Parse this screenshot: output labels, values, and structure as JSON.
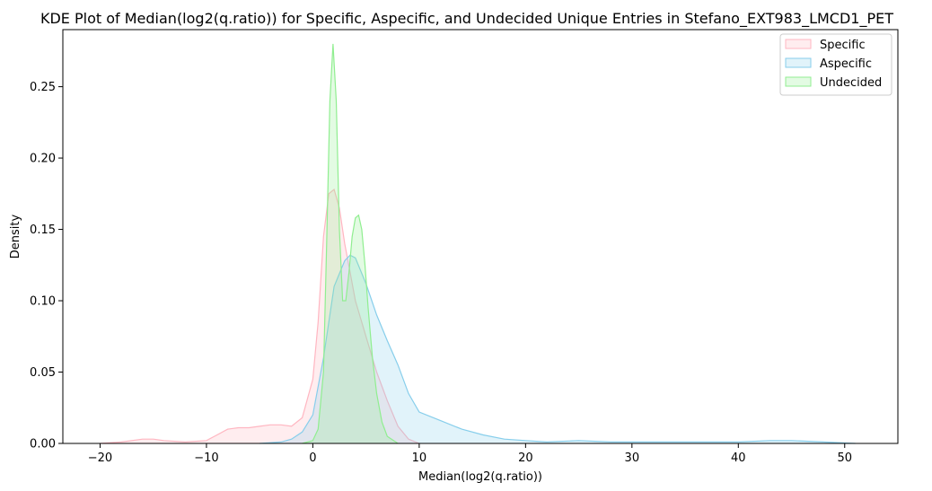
{
  "chart_data": {
    "type": "area",
    "title": "KDE Plot of Median(log2(q.ratio)) for Specific, Aspecific, and Undecided Unique Entries in Stefano_EXT983_LMCD1_PET",
    "xlabel": "Median(log2(q.ratio))",
    "ylabel": "Density",
    "xlim": [
      -23.5,
      55
    ],
    "ylim": [
      0,
      0.29
    ],
    "xticks": [
      -20,
      -10,
      0,
      10,
      20,
      30,
      40,
      50
    ],
    "xtick_labels": [
      "−20",
      "−10",
      "0",
      "10",
      "20",
      "30",
      "40",
      "50"
    ],
    "yticks": [
      0,
      0.05,
      0.1,
      0.15,
      0.2,
      0.25
    ],
    "ytick_labels": [
      "0.00",
      "0.05",
      "0.10",
      "0.15",
      "0.20",
      "0.25"
    ],
    "grid": false,
    "legend_position": "top-right",
    "series": [
      {
        "name": "Specific",
        "color": "#ffb6c1",
        "x": [
          -20,
          -18,
          -16,
          -15,
          -14,
          -12,
          -10,
          -9,
          -8,
          -7,
          -6,
          -5,
          -4,
          -3,
          -2,
          -1,
          0,
          0.5,
          1,
          1.5,
          2,
          2.5,
          3,
          3.5,
          4,
          5,
          6,
          7,
          8,
          9,
          10
        ],
        "y": [
          0,
          0.001,
          0.003,
          0.003,
          0.002,
          0.001,
          0.002,
          0.006,
          0.01,
          0.011,
          0.011,
          0.012,
          0.013,
          0.013,
          0.012,
          0.018,
          0.045,
          0.085,
          0.145,
          0.175,
          0.178,
          0.165,
          0.14,
          0.12,
          0.1,
          0.075,
          0.05,
          0.03,
          0.012,
          0.003,
          0
        ]
      },
      {
        "name": "Aspecific",
        "color": "#87ceeb",
        "x": [
          -5,
          -3,
          -2,
          -1,
          0,
          1,
          2,
          3,
          3.5,
          4,
          5,
          6,
          7,
          8,
          9,
          10,
          12,
          14,
          16,
          18,
          20,
          22,
          25,
          28,
          30,
          35,
          40,
          43,
          45,
          48,
          51
        ],
        "y": [
          0,
          0.001,
          0.003,
          0.008,
          0.02,
          0.06,
          0.11,
          0.128,
          0.132,
          0.13,
          0.112,
          0.09,
          0.072,
          0.055,
          0.035,
          0.022,
          0.016,
          0.01,
          0.006,
          0.003,
          0.002,
          0.001,
          0.002,
          0.001,
          0.001,
          0.001,
          0.001,
          0.002,
          0.002,
          0.001,
          0
        ]
      },
      {
        "name": "Undecided",
        "color": "#90ee90",
        "x": [
          -1,
          0,
          0.5,
          1,
          1.3,
          1.6,
          1.9,
          2.2,
          2.5,
          2.8,
          3.1,
          3.4,
          3.7,
          4,
          4.3,
          4.6,
          4.9,
          5.2,
          5.6,
          6,
          6.5,
          7,
          8
        ],
        "y": [
          0,
          0.002,
          0.01,
          0.05,
          0.14,
          0.24,
          0.28,
          0.24,
          0.15,
          0.1,
          0.1,
          0.12,
          0.145,
          0.158,
          0.16,
          0.15,
          0.125,
          0.095,
          0.06,
          0.035,
          0.015,
          0.005,
          0
        ]
      }
    ]
  }
}
